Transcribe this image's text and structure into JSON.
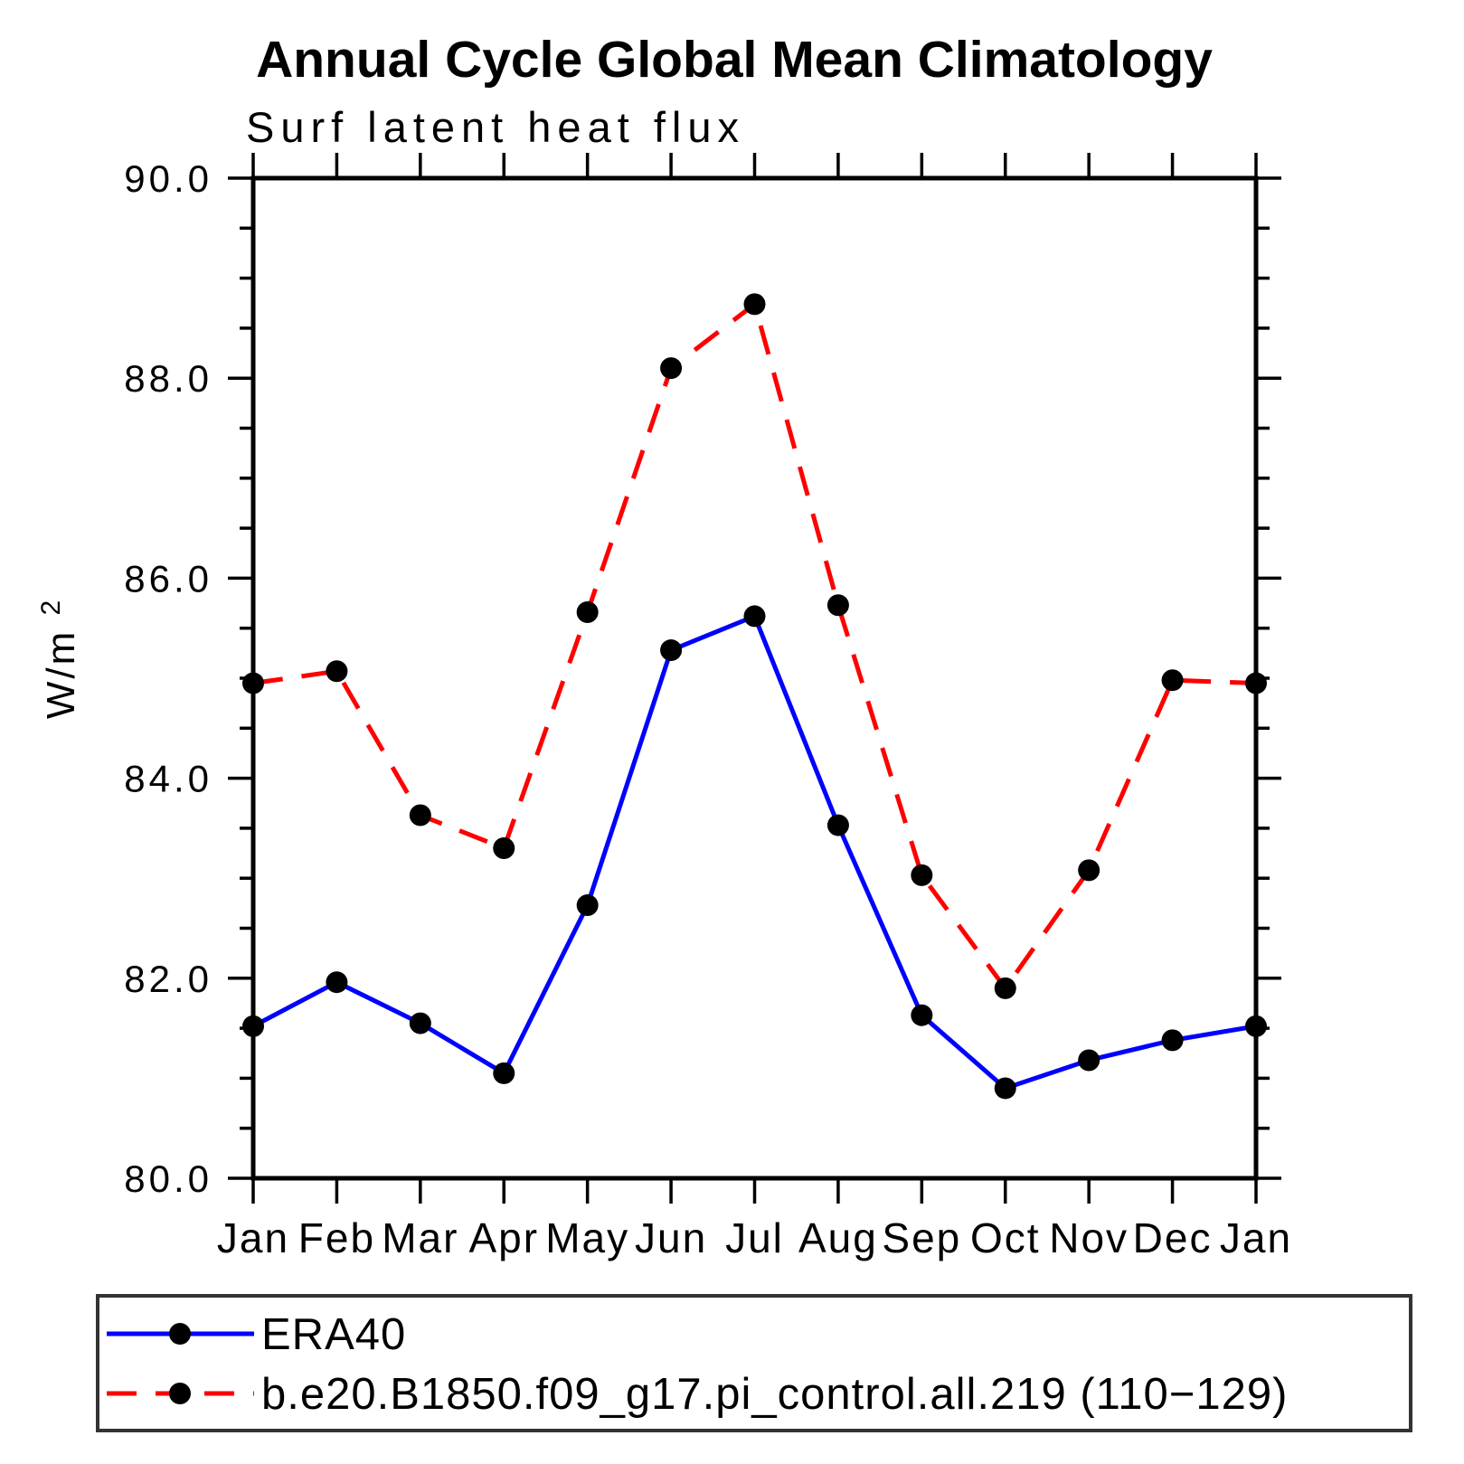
{
  "chart_data": {
    "type": "line",
    "title": "Annual Cycle Global Mean Climatology",
    "subtitle": "Surf latent heat flux",
    "ylabel_base": "W/m",
    "ylabel_exp": "2",
    "categories": [
      "Jan",
      "Feb",
      "Mar",
      "Apr",
      "May",
      "Jun",
      "Jul",
      "Aug",
      "Sep",
      "Oct",
      "Nov",
      "Dec",
      "Jan"
    ],
    "series": [
      {
        "name": "ERA40",
        "line_style": "solid",
        "color": "#0000ff",
        "marker_color": "#000000",
        "values": [
          81.52,
          81.96,
          81.55,
          81.05,
          82.73,
          85.28,
          85.62,
          83.53,
          81.63,
          80.9,
          81.18,
          81.38,
          81.52
        ]
      },
      {
        "name": "b.e20.B1850.f09_g17.pi_control.all.219 (110−129)",
        "line_style": "dashed",
        "color": "#ff0000",
        "marker_color": "#000000",
        "values": [
          84.95,
          85.07,
          83.63,
          83.3,
          85.66,
          88.1,
          88.74,
          85.73,
          83.03,
          81.9,
          83.08,
          84.98,
          84.95
        ]
      }
    ],
    "ylim": [
      80,
      90
    ],
    "ytick_values": [
      80,
      82,
      84,
      86,
      88,
      90
    ],
    "ytick_labels": [
      "80.0",
      "82.0",
      "84.0",
      "86.0",
      "88.0",
      "90.0"
    ],
    "yminor_step": 0.5,
    "grid": "off",
    "legend_position": "bottom",
    "axis_color": "#000000",
    "legend_border_color": "#333333"
  }
}
